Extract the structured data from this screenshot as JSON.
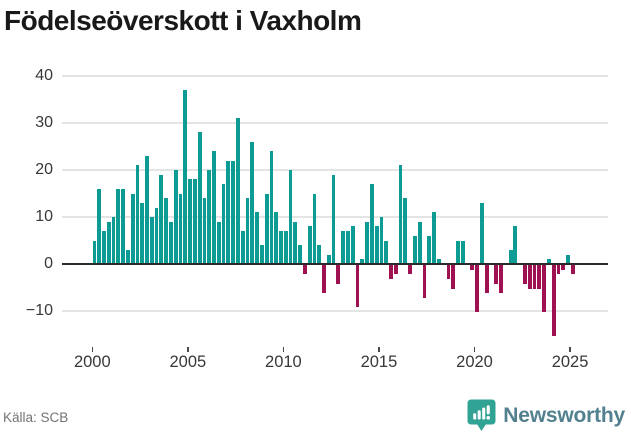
{
  "header": {
    "title": "Födelseöverskott i Vaxholm"
  },
  "footer": {
    "source": "Källa: SCB",
    "brand": "Newsworthy",
    "brand_icon": "newsworthy-pin-barchart-icon"
  },
  "chart_data": {
    "type": "bar",
    "title": "Födelseöverskott i Vaxholm",
    "frequency": "quarterly",
    "start": "2000 Q1",
    "end": "2025 Q2",
    "xlabel": "",
    "ylabel": "",
    "ylim": [
      -16,
      42
    ],
    "grid": true,
    "y_ticks": [
      40,
      30,
      20,
      10,
      0,
      -10
    ],
    "y_tick_labels": [
      "40",
      "30",
      "20",
      "10",
      "0",
      "−10"
    ],
    "x_tick_labels": [
      "2000",
      "2005",
      "2010",
      "2015",
      "2020",
      "2025"
    ],
    "values": [
      5,
      16,
      7,
      9,
      10,
      16,
      16,
      3,
      15,
      21,
      13,
      23,
      10,
      12,
      19,
      14,
      9,
      20,
      15,
      37,
      18,
      18,
      28,
      14,
      20,
      24,
      9,
      17,
      22,
      22,
      31,
      7,
      14,
      26,
      11,
      4,
      15,
      24,
      11,
      7,
      7,
      20,
      9,
      4,
      -2,
      8,
      15,
      4,
      -6,
      2,
      19,
      -4,
      7,
      7,
      8,
      -9,
      1,
      9,
      17,
      8,
      10,
      5,
      -3,
      -2,
      21,
      14,
      -2,
      6,
      9,
      -7,
      6,
      11,
      1,
      0,
      -3,
      -5,
      5,
      5,
      0,
      -1,
      -10,
      13,
      -6,
      0,
      -4,
      -6,
      0,
      3,
      8,
      0,
      -4,
      -5,
      -5,
      -5,
      -10,
      1,
      -15,
      -2,
      -1,
      2,
      -2,
      0
    ],
    "colors": {
      "positive": "#0d9c93",
      "negative": "#9f1150"
    }
  }
}
